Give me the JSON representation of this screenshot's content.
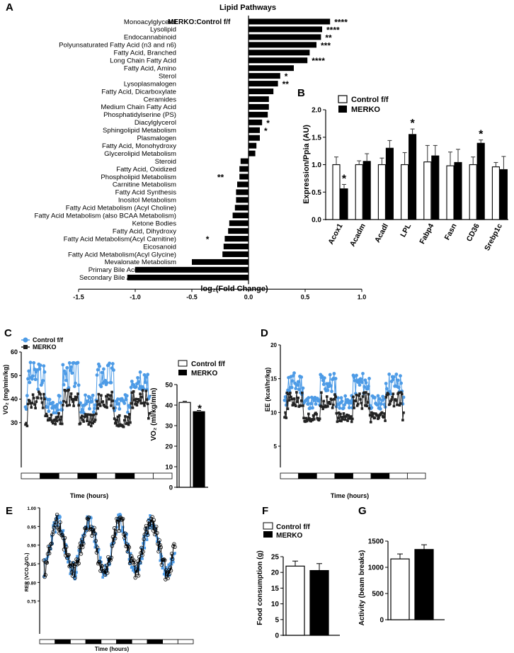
{
  "panels": {
    "a": "A",
    "b": "B",
    "c": "C",
    "d": "D",
    "e": "E",
    "f": "F",
    "g": "G"
  },
  "chart_data": [
    {
      "id": "A",
      "type": "bar",
      "orientation": "horizontal",
      "title": "Lipid Pathways",
      "annotation": "MERKO:Control f/f",
      "xlabel": "log₂(Fold Change)",
      "xlim": [
        -1.5,
        1.0
      ],
      "xticks": [
        "-1.5",
        "-1.0",
        "-0.5",
        "0.0",
        "0.5",
        "1.0"
      ],
      "categories": [
        "Monoacylglycerol",
        "Lysolipid",
        "Endocannabinoid",
        "Polyunsaturated Fatty Acid (n3 and n6)",
        "Fatty Acid, Branched",
        "Long Chain Fatty Acid",
        "Fatty Acid, Amino",
        "Sterol",
        "Lysoplasmalogen",
        "Fatty Acid, Dicarboxylate",
        "Ceramides",
        "Medium Chain Fatty Acid",
        "Phosphatidylserine (PS)",
        "Diacylglycerol",
        "Sphingolipid Metabolism",
        "Plasmalogen",
        "Fatty Acid, Monohydroxy",
        "Glycerolipid Metabolism",
        "Steroid",
        "Fatty Acid, Oxidized",
        "Phospholipid Metabolism",
        "Carnitine Metabolism",
        "Fatty Acid Synthesis",
        "Inositol Metabolism",
        "Fatty Acid Metabolism (Acyl Choline)",
        "Fatty Acid Metabolism (also BCAA Metabolism)",
        "Ketone Bodies",
        "Fatty Acid, Dihydroxy",
        "Fatty Acid Metabolism(Acyl Carnitine)",
        "Eicosanoid",
        "Fatty Acid Metabolism(Acyl Glycine)",
        "Mevalonate Metabolism",
        "Primary Bile Acid Metabolism",
        "Secondary Bile Acid Metabolism"
      ],
      "values": [
        0.72,
        0.65,
        0.64,
        0.6,
        0.54,
        0.52,
        0.4,
        0.28,
        0.26,
        0.22,
        0.18,
        0.18,
        0.17,
        0.12,
        0.1,
        0.1,
        0.07,
        0.06,
        -0.07,
        -0.08,
        -0.08,
        -0.1,
        -0.11,
        -0.11,
        -0.12,
        -0.14,
        -0.17,
        -0.18,
        -0.21,
        -0.22,
        -0.23,
        -0.5,
        -1.0,
        -1.07
      ],
      "significance": [
        "****",
        "****",
        "**",
        "***",
        "",
        "****",
        "",
        "*",
        "**",
        "",
        "",
        "",
        "",
        "*",
        "*",
        "",
        "",
        "",
        "",
        "",
        "**",
        "",
        "",
        "",
        "",
        "",
        "",
        "",
        "*",
        "",
        "",
        "",
        "",
        ""
      ]
    },
    {
      "id": "B",
      "type": "bar",
      "ylabel": "Expression/Ppia (AU)",
      "ylim": [
        0.0,
        2.0
      ],
      "yticks": [
        "0.0",
        "0.5",
        "1.0",
        "1.5",
        "2.0"
      ],
      "categories": [
        "Acox1",
        "Acadm",
        "Acadl",
        "LPL",
        "Fabp4",
        "Fasn",
        "CD36",
        "Srebp1c"
      ],
      "series": [
        {
          "name": "Control f/f",
          "color": "#ffffff",
          "values": [
            1.0,
            1.0,
            1.0,
            1.0,
            1.05,
            0.98,
            1.0,
            0.96
          ],
          "errors": [
            0.14,
            0.07,
            0.12,
            0.22,
            0.3,
            0.25,
            0.14,
            0.08
          ]
        },
        {
          "name": "MERKO",
          "color": "#000000",
          "values": [
            0.56,
            1.06,
            1.3,
            1.55,
            1.16,
            1.04,
            1.39,
            0.91
          ],
          "errors": [
            0.08,
            0.14,
            0.14,
            0.1,
            0.19,
            0.24,
            0.06,
            0.24
          ]
        }
      ],
      "significance": [
        "*",
        "",
        "",
        "*",
        "",
        "",
        "*",
        ""
      ]
    },
    {
      "id": "C-left",
      "type": "line",
      "ylabel": "VO₂ (mg/min/kg)",
      "xlabel": "Time (hours)",
      "ylim": [
        20,
        60
      ],
      "yticks": [
        "30",
        "40",
        "50",
        "60"
      ],
      "series": [
        {
          "name": "Control f/f",
          "color": "#4d9be6"
        },
        {
          "name": "MERKO",
          "color": "#222222"
        }
      ]
    },
    {
      "id": "C-right",
      "type": "bar",
      "ylabel": "VO₂ (ml/kg/min)",
      "ylim": [
        0,
        50
      ],
      "yticks": [
        "0",
        "10",
        "20",
        "30",
        "40",
        "50"
      ],
      "series": [
        {
          "name": "Control f/f",
          "value": 41.3,
          "error": 0.6
        },
        {
          "name": "MERKO",
          "value": 36.8,
          "error": 0.6
        }
      ],
      "significance": "*"
    },
    {
      "id": "D",
      "type": "line",
      "ylabel": "EE (kcal/hr/kg)",
      "xlabel": "Time (hours)",
      "ylim": [
        5,
        20
      ],
      "yticks": [
        "5",
        "10",
        "15",
        "20"
      ],
      "series": [
        {
          "name": "Control f/f",
          "color": "#4d9be6"
        },
        {
          "name": "MERKO",
          "color": "#222222"
        }
      ]
    },
    {
      "id": "E",
      "type": "line",
      "ylabel": "RER (VCO₂/VO₂)",
      "xlabel": "Time (hours)",
      "ylim": [
        0.7,
        1.0
      ],
      "yticks": [
        "0.75",
        "0.80",
        "0.85",
        "0.90",
        "0.95",
        "1.00"
      ],
      "series": [
        {
          "name": "Control f/f",
          "color": "#4d9be6"
        },
        {
          "name": "MERKO",
          "color": "#000000"
        }
      ]
    },
    {
      "id": "F",
      "type": "bar",
      "ylabel": "Food consumption (g)",
      "ylim": [
        0,
        25
      ],
      "yticks": [
        "0",
        "5",
        "10",
        "15",
        "20",
        "25"
      ],
      "series": [
        {
          "name": "Control f/f",
          "value": 22.0,
          "error": 1.6
        },
        {
          "name": "MERKO",
          "value": 20.6,
          "error": 2.2
        }
      ]
    },
    {
      "id": "G",
      "type": "bar",
      "ylabel": "Activity (beam breaks)",
      "ylim": [
        0,
        1500
      ],
      "yticks": [
        "0",
        "500",
        "1000",
        "1500"
      ],
      "series": [
        {
          "name": "Control f/f",
          "value": 1160,
          "error": 95
        },
        {
          "name": "MERKO",
          "value": 1340,
          "error": 90
        }
      ]
    }
  ],
  "legend": {
    "control": "Control f/f",
    "merko": "MERKO"
  }
}
